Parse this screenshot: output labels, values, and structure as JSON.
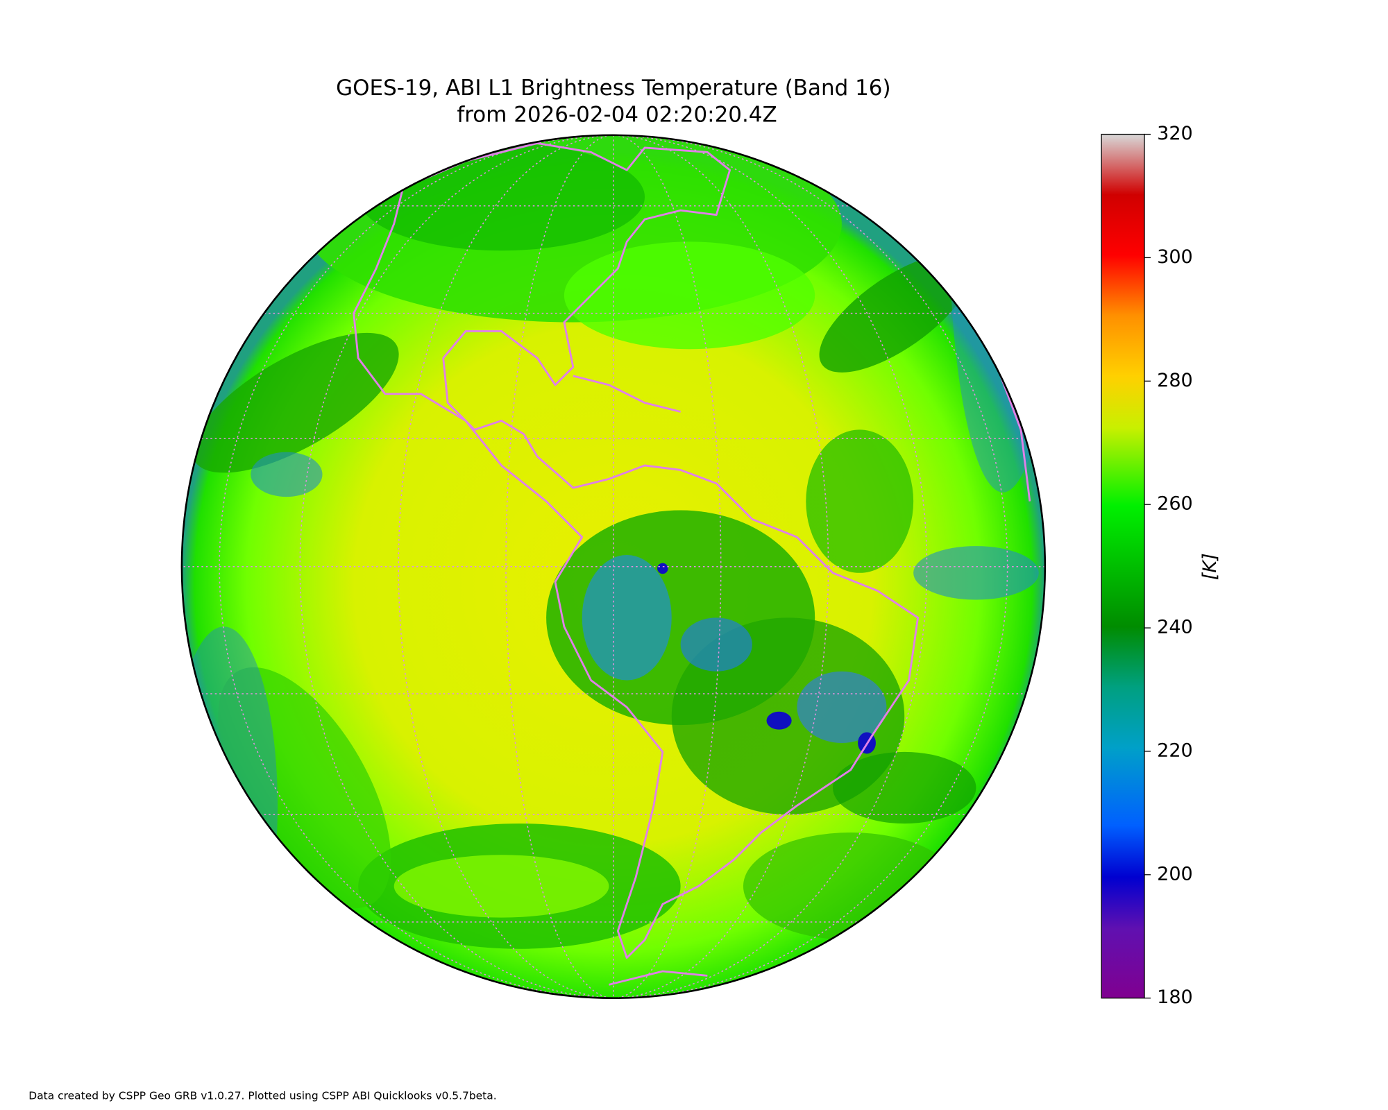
{
  "title": [
    "GOES-19, ABI L1 Brightness Temperature (Band 16)",
    "from 2026-02-04 02:20:20.4Z"
  ],
  "colorbar": {
    "label": "[K]",
    "lim": [
      180,
      320
    ],
    "ticks": [
      180,
      200,
      220,
      240,
      260,
      280,
      300,
      320
    ]
  },
  "footer": "Data created by CSPP Geo GRB v1.0.27. Plotted using CSPP ABI Quicklooks v0.5.7beta."
}
